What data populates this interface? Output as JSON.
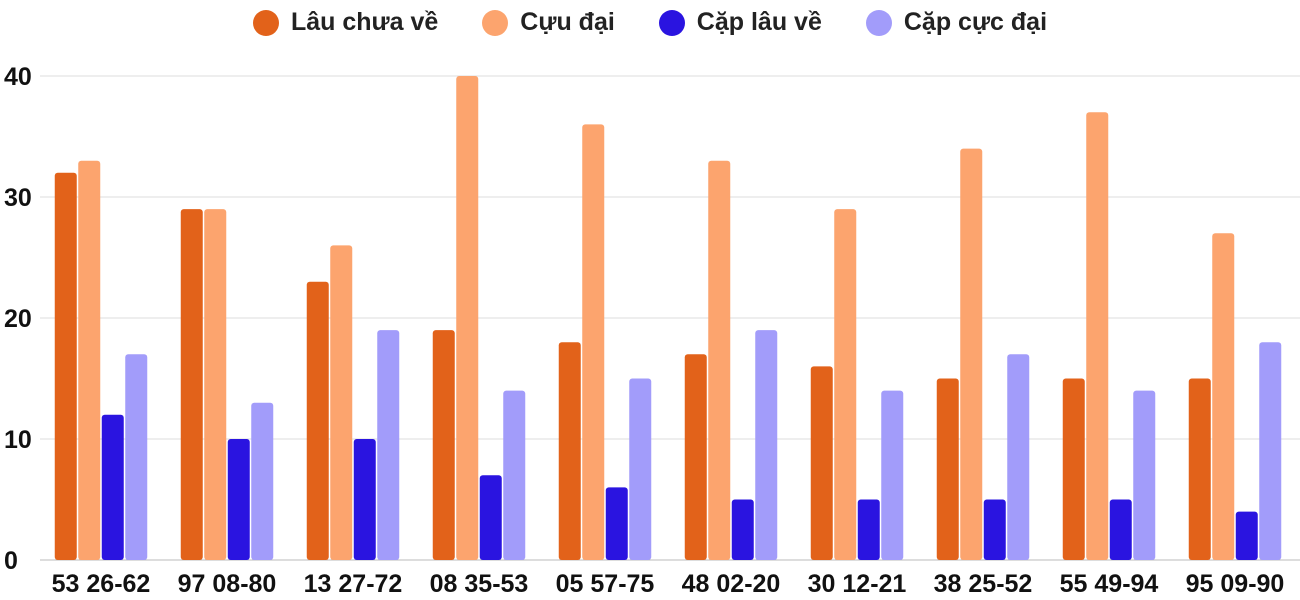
{
  "chart_data": {
    "type": "bar",
    "title": "",
    "xlabel": "",
    "ylabel": "",
    "ylim": [
      0,
      40
    ],
    "yticks": [
      0,
      10,
      20,
      30,
      40
    ],
    "grid": true,
    "legend_position": "top-center",
    "categories": [
      "53 26-62",
      "97 08-80",
      "13 27-72",
      "08 35-53",
      "05 57-75",
      "48 02-20",
      "30 12-21",
      "38 25-52",
      "55 49-94",
      "95 09-90"
    ],
    "series": [
      {
        "name": "Lâu chưa về",
        "color": "#E2621A",
        "values": [
          32,
          29,
          23,
          19,
          18,
          17,
          16,
          15,
          15,
          15
        ]
      },
      {
        "name": "Cựu đại",
        "color": "#FCA46E",
        "values": [
          33,
          29,
          26,
          40,
          36,
          33,
          29,
          34,
          37,
          27
        ]
      },
      {
        "name": "Cặp lâu về",
        "color": "#2A14E0",
        "values": [
          12,
          10,
          10,
          7,
          6,
          5,
          5,
          5,
          5,
          4
        ]
      },
      {
        "name": "Cặp cực đại",
        "color": "#A29CFA",
        "values": [
          17,
          13,
          19,
          14,
          15,
          19,
          14,
          17,
          14,
          18
        ]
      }
    ]
  }
}
